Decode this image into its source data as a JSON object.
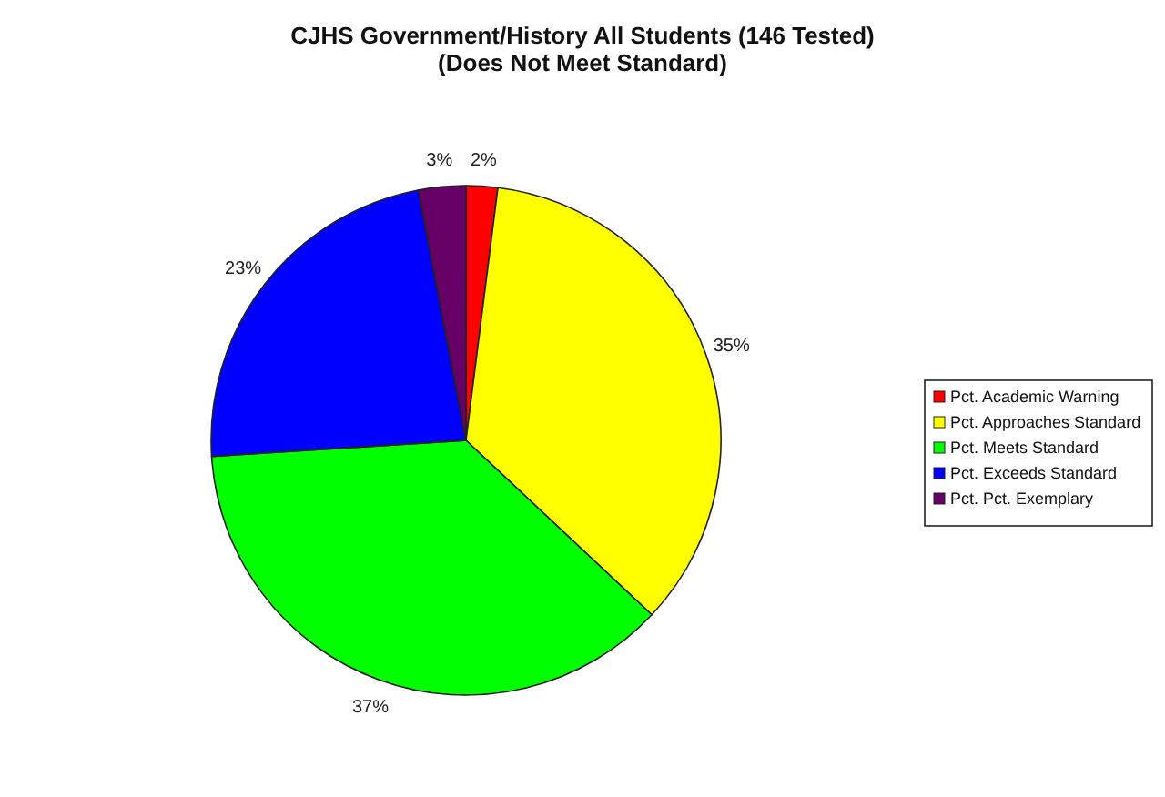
{
  "chart_data": {
    "type": "pie",
    "title": "CJHS Government/History All Students (146 Tested)\n(Does Not Meet Standard)",
    "categories": [
      "Pct. Academic Warning",
      "Pct. Approaches Standard",
      "Pct. Meets Standard",
      "Pct. Exceeds Standard",
      "Pct. Pct. Exemplary"
    ],
    "values": [
      2,
      35,
      37,
      23,
      3
    ],
    "colors": [
      "#ff0000",
      "#ffff00",
      "#00ff00",
      "#0000ff",
      "#660066"
    ],
    "value_labels": [
      "2%",
      "35%",
      "37%",
      "23%",
      "3%"
    ],
    "legend": "right"
  }
}
